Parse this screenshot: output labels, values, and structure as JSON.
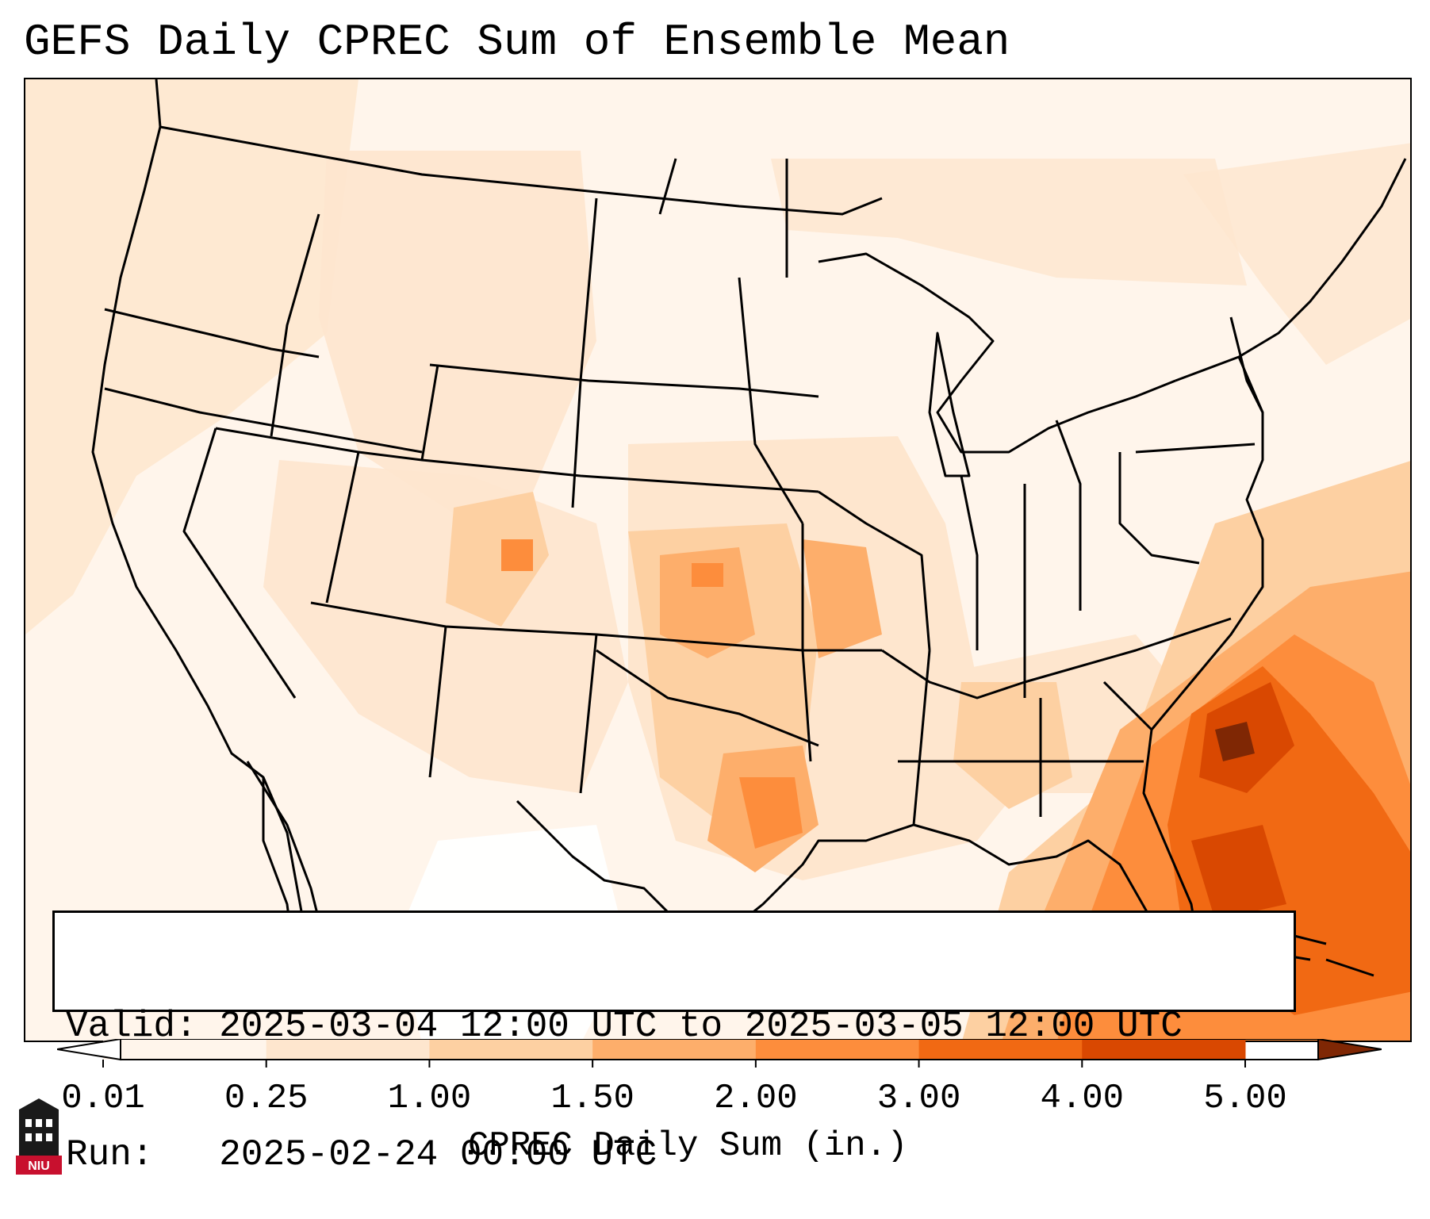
{
  "title": "GEFS Daily CPREC Sum of Ensemble Mean",
  "info": {
    "valid_line": "Valid: 2025-03-04 12:00 UTC to 2025-03-05 12:00 UTC",
    "run_line": "Run:   2025-02-24 00:00 UTC"
  },
  "colorbar": {
    "title": "CPREC Daily Sum (in.)",
    "ticks": [
      "0.01",
      "0.25",
      "1.00",
      "1.50",
      "2.00",
      "3.00",
      "4.00",
      "5.00"
    ],
    "colors": [
      "#fff5eb",
      "#fee6ce",
      "#fdd0a2",
      "#fdae6b",
      "#fd8d3c",
      "#f16913",
      "#d94801",
      "#a63603"
    ],
    "under_color": "#ffffff",
    "over_color": "#7f2704"
  },
  "logo": {
    "text": "NIU",
    "accent": "#c8102e"
  }
}
